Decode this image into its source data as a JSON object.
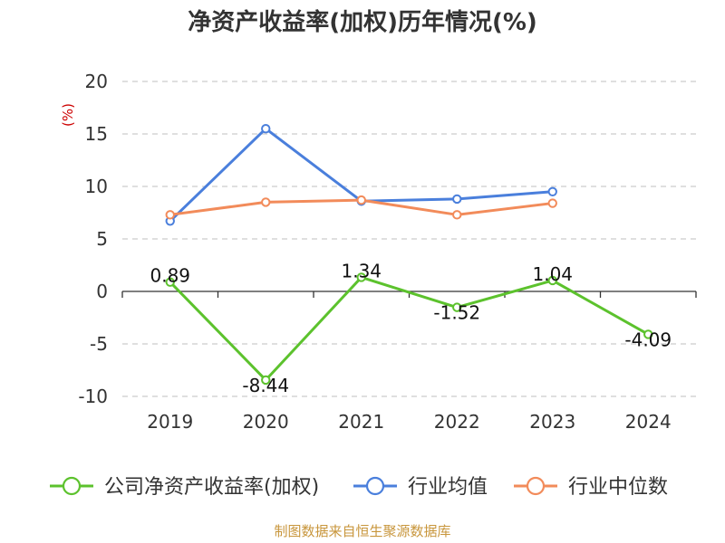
{
  "chart_data": {
    "type": "line",
    "title": "净资产收益率(加权)历年情况(%)",
    "ylabel": "(%)",
    "categories": [
      "2019",
      "2020",
      "2021",
      "2022",
      "2023",
      "2024"
    ],
    "ylim": [
      -10,
      20
    ],
    "yticks": [
      20,
      15,
      10,
      5,
      0,
      -5,
      -10
    ],
    "grid": true,
    "legend_position": "bottom",
    "series": [
      {
        "name": "公司净资产收益率(加权)",
        "color": "#5cc22d",
        "values": [
          0.89,
          -8.44,
          1.34,
          -1.52,
          1.04,
          -4.09
        ],
        "labels": [
          "0.89",
          "-8.44",
          "1.34",
          "-1.52",
          "1.04",
          "-4.09"
        ]
      },
      {
        "name": "行业均值",
        "color": "#4a7fdc",
        "values": [
          6.7,
          15.5,
          8.6,
          8.8,
          9.5,
          null
        ]
      },
      {
        "name": "行业中位数",
        "color": "#f28b5a",
        "values": [
          7.3,
          8.5,
          8.7,
          7.3,
          8.4,
          null
        ]
      }
    ]
  },
  "source": "制图数据来自恒生聚源数据库"
}
